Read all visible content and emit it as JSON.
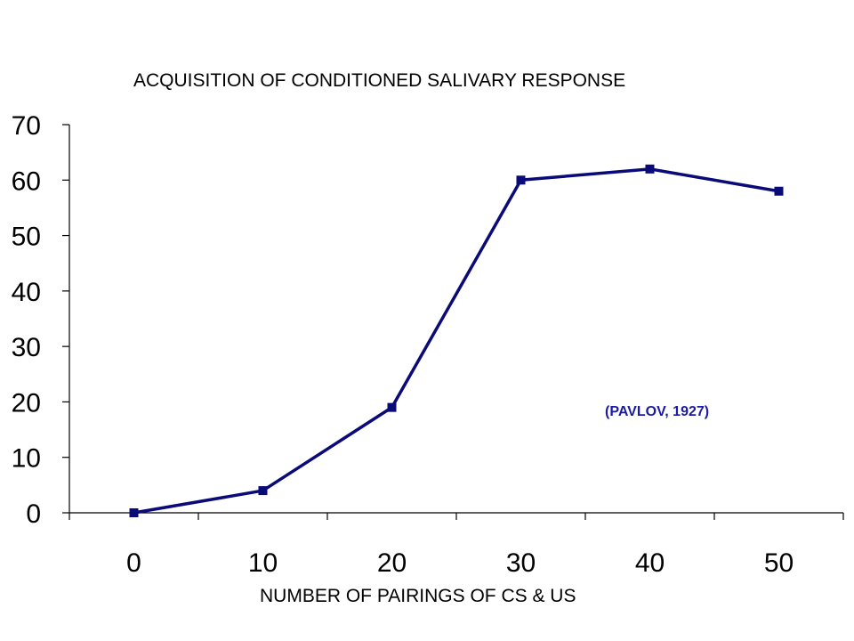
{
  "chart_data": {
    "type": "line",
    "title": "ACQUISITION OF CONDITIONED SALIVARY RESPONSE",
    "xlabel": "NUMBER OF PAIRINGS OF CS & US",
    "ylabel": "",
    "x": [
      0,
      10,
      20,
      30,
      40,
      50
    ],
    "x_tick_labels": [
      "0",
      "10",
      "20",
      "30",
      "40",
      "50"
    ],
    "y_tick_labels": [
      "70",
      "60",
      "50",
      "40",
      "30",
      "20",
      "10",
      "0"
    ],
    "ylim": [
      0,
      70
    ],
    "grid": false,
    "series": [
      {
        "values": [
          0,
          4,
          19,
          60,
          62,
          58
        ],
        "color": "#0a0a78"
      }
    ],
    "annotations": [
      {
        "text": "(PAVLOV, 1927)",
        "color": "#1a1aa6"
      }
    ]
  }
}
